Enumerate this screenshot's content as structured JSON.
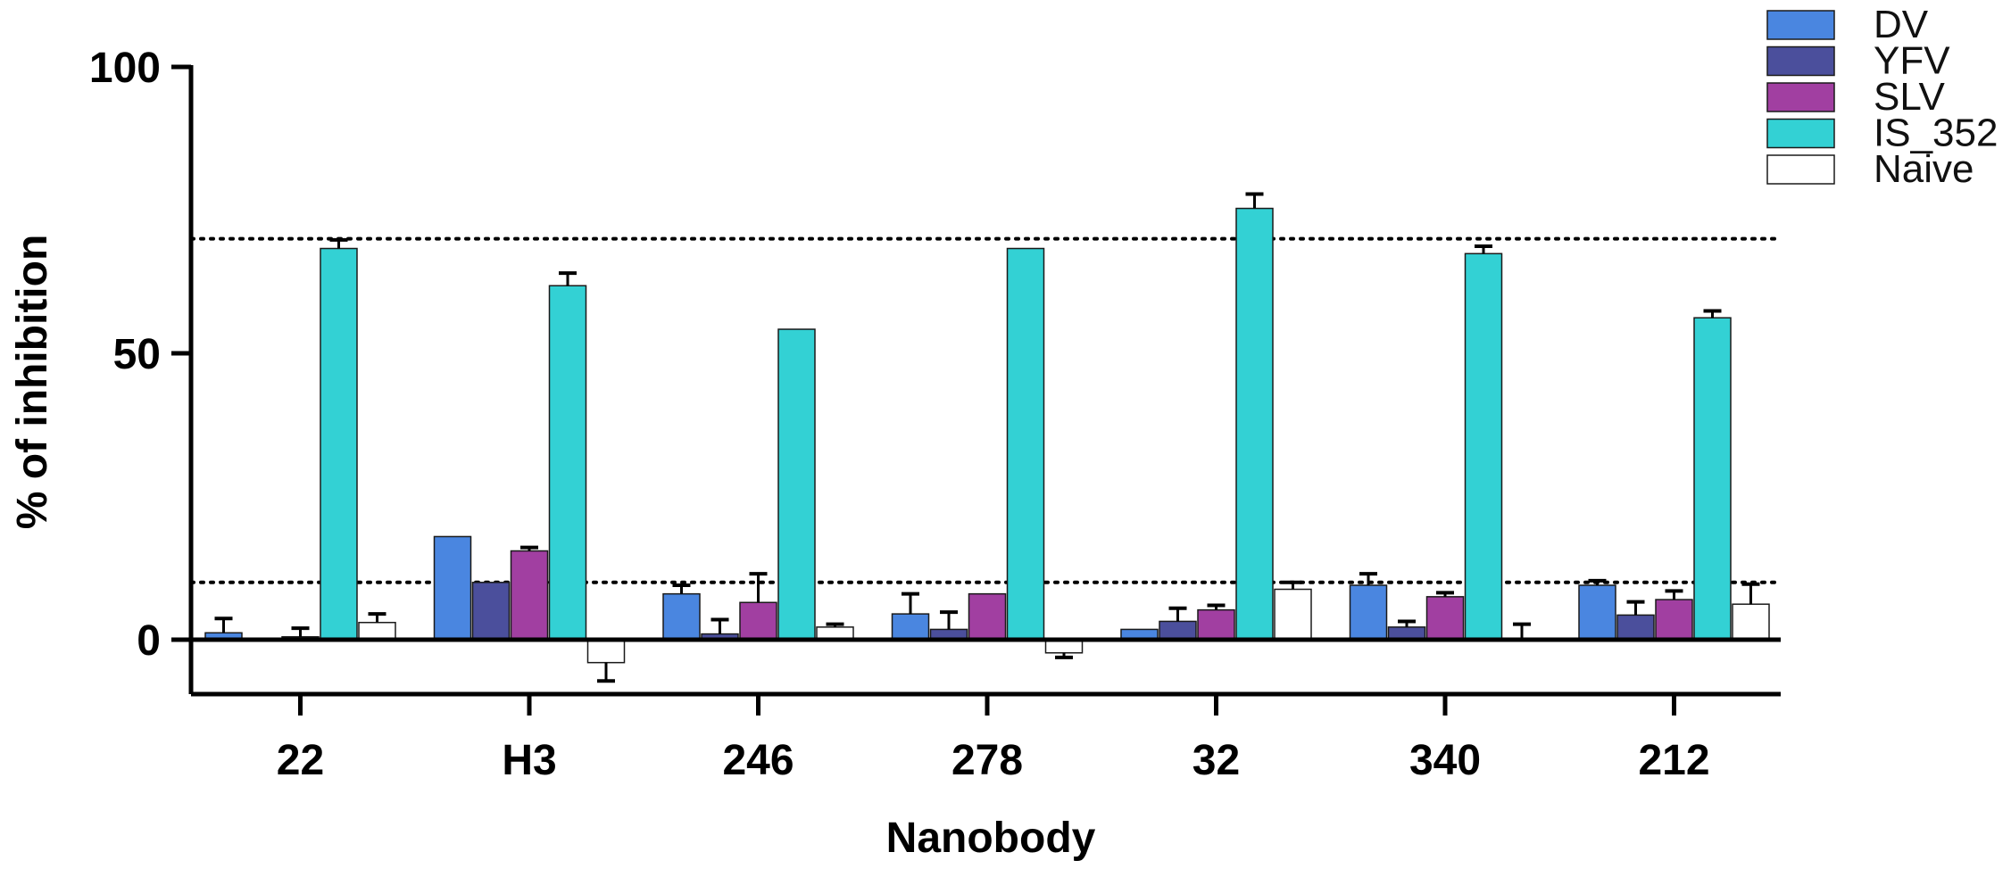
{
  "chart_data": {
    "type": "bar",
    "title": "",
    "xlabel": "Nanobody",
    "ylabel": "% of inhibition",
    "ylim": [
      -10,
      100
    ],
    "yticks": [
      0,
      50,
      100
    ],
    "legend_position": "top-right",
    "reference_lines": [
      {
        "y": 70,
        "style": "dotted"
      },
      {
        "y": 10,
        "style": "dotted"
      }
    ],
    "categories": [
      "22",
      "H3",
      "246",
      "278",
      "32",
      "340",
      "212"
    ],
    "series": [
      {
        "name": "DV",
        "color": "#4a86e0",
        "values": [
          1.2,
          18,
          8,
          4.5,
          1.8,
          9.5,
          9.5
        ],
        "errors": [
          2.5,
          0,
          1.5,
          3.5,
          0,
          2,
          0.8
        ]
      },
      {
        "name": "YFV",
        "color": "#4b4f9c",
        "values": [
          0,
          10,
          1,
          1.8,
          3.2,
          2.2,
          4.3
        ],
        "errors": [
          0,
          0,
          2.5,
          3,
          2.3,
          1,
          2.3
        ]
      },
      {
        "name": "SLV",
        "color": "#a13fa1",
        "values": [
          0.5,
          15.5,
          6.5,
          8,
          5.2,
          7.5,
          7
        ],
        "errors": [
          1.5,
          0.6,
          5,
          0,
          0.8,
          0.7,
          1.5
        ]
      },
      {
        "name": "IS_352",
        "color": "#33d1d4",
        "values": [
          68.3,
          61.8,
          54.2,
          68.3,
          75.3,
          67.4,
          56.2
        ],
        "errors": [
          1.5,
          2.2,
          0,
          0,
          2.5,
          1.3,
          1.2
        ]
      },
      {
        "name": "Naive",
        "color": "#ffffff",
        "values": [
          3,
          -4,
          2.2,
          -2.3,
          8.8,
          0,
          6.2
        ],
        "errors": [
          1.5,
          3.2,
          0.5,
          0.8,
          1.2,
          2.7,
          3.5
        ]
      }
    ]
  }
}
